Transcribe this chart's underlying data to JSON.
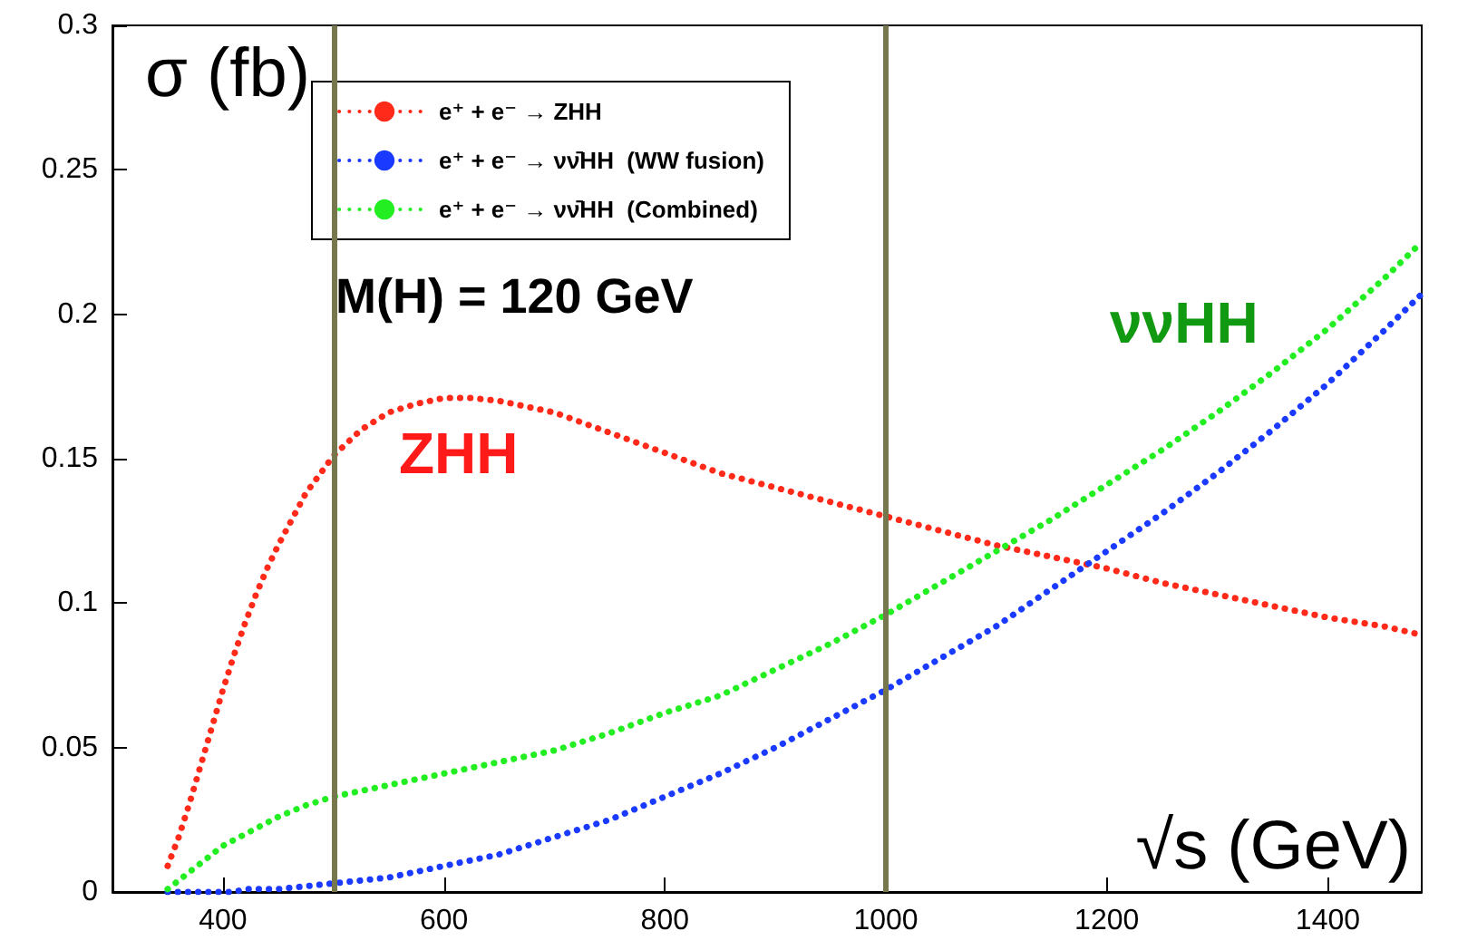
{
  "chart_data": {
    "type": "line",
    "xlabel": "√s (GeV)",
    "ylabel": "σ (fb)",
    "x": [
      350,
      360,
      370,
      380,
      390,
      400,
      410,
      420,
      430,
      440,
      450,
      475,
      500,
      525,
      550,
      575,
      600,
      625,
      650,
      700,
      750,
      800,
      850,
      900,
      950,
      1000,
      1050,
      1100,
      1150,
      1200,
      1250,
      1300,
      1350,
      1400,
      1450,
      1485
    ],
    "series": [
      {
        "name": "e⁺ + e⁻ → ZHH",
        "color": "#ff2a1a",
        "values": [
          0.009,
          0.019,
          0.031,
          0.044,
          0.057,
          0.07,
          0.082,
          0.093,
          0.103,
          0.112,
          0.12,
          0.138,
          0.151,
          0.16,
          0.166,
          0.169,
          0.171,
          0.171,
          0.17,
          0.166,
          0.159,
          0.152,
          0.145,
          0.14,
          0.135,
          0.13,
          0.125,
          0.12,
          0.116,
          0.112,
          0.107,
          0.103,
          0.099,
          0.095,
          0.092,
          0.089
        ]
      },
      {
        "name": "e⁺ + e⁻ → νν̄HH  (WW fusion)",
        "color": "#1a3aff",
        "values": [
          0,
          0,
          0,
          0,
          0,
          0,
          0,
          0.001,
          0.001,
          0.001,
          0.001,
          0.002,
          0.003,
          0.004,
          0.005,
          0.007,
          0.009,
          0.011,
          0.013,
          0.019,
          0.025,
          0.033,
          0.041,
          0.05,
          0.06,
          0.07,
          0.081,
          0.092,
          0.105,
          0.118,
          0.131,
          0.145,
          0.16,
          0.176,
          0.194,
          0.207
        ]
      },
      {
        "name": "e⁺ + e⁻ → νν̄HH  (Combined)",
        "color": "#22ee22",
        "values": [
          0.001,
          0.004,
          0.007,
          0.01,
          0.013,
          0.016,
          0.018,
          0.02,
          0.022,
          0.024,
          0.026,
          0.03,
          0.033,
          0.035,
          0.037,
          0.039,
          0.041,
          0.043,
          0.045,
          0.049,
          0.055,
          0.062,
          0.068,
          0.077,
          0.086,
          0.096,
          0.107,
          0.118,
          0.129,
          0.141,
          0.153,
          0.166,
          0.18,
          0.195,
          0.212,
          0.225
        ]
      }
    ],
    "xlim": [
      300,
      1485
    ],
    "xticks": [
      400,
      600,
      800,
      1000,
      1200,
      1400
    ],
    "ylim": [
      0,
      0.3
    ],
    "yticks": [
      0,
      0.05,
      0.1,
      0.15,
      0.2,
      0.25,
      0.3
    ],
    "ref_lines": [
      {
        "axis": "x",
        "value": 500,
        "color": "#77774d"
      },
      {
        "axis": "x",
        "value": 1000,
        "color": "#77774d"
      }
    ],
    "annotations": [
      "M(H) = 120 GeV",
      "ZHH",
      "ννHH"
    ],
    "line_style": "dotted",
    "marker": "none",
    "grid": false,
    "legend": "top left"
  }
}
